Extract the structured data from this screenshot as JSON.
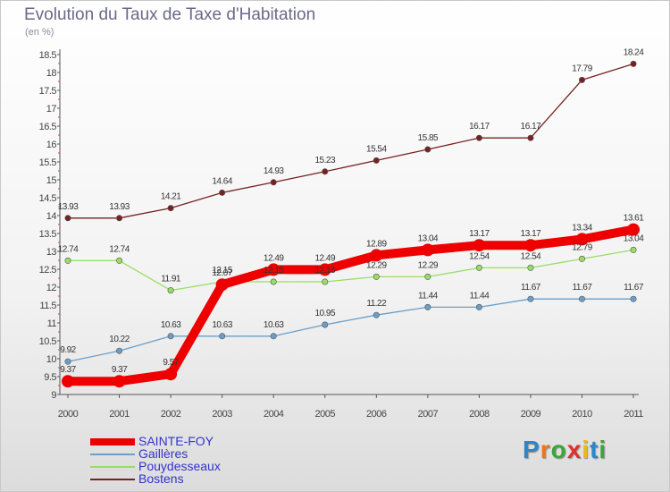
{
  "header": {
    "title": "Evolution du Taux de Taxe d'Habitation",
    "subtitle": "(en %)"
  },
  "logo": {
    "text": "Proxiti",
    "letter_colors": [
      "#2e86c8",
      "#e87722",
      "#3aa53a",
      "#e03030",
      "#e8b820",
      "#2e86c8",
      "#3aa53a"
    ]
  },
  "chart_data": {
    "type": "line",
    "title": "Evolution du Taux de Taxe d'Habitation",
    "subtitle": "(en %)",
    "xlabel": "",
    "ylabel": "",
    "categories": [
      "2000",
      "2001",
      "2002",
      "2003",
      "2004",
      "2005",
      "2006",
      "2007",
      "2008",
      "2009",
      "2010",
      "2011"
    ],
    "ylim": [
      9,
      18.5
    ],
    "yticks": [
      "9",
      "9.5",
      "10",
      "10.5",
      "11",
      "11.5",
      "12",
      "12.5",
      "13",
      "13.5",
      "14",
      "14.5",
      "15",
      "15.5",
      "16",
      "16.5",
      "17",
      "17.5",
      "18",
      "18.5"
    ],
    "grid": false,
    "legend_position": "bottom-left",
    "series": [
      {
        "name": "SAINTE-FOY",
        "color": "#ee0000",
        "emphasis": true,
        "values": [
          9.37,
          9.37,
          9.57,
          12.07,
          12.49,
          12.49,
          12.89,
          13.04,
          13.17,
          13.17,
          13.34,
          13.61
        ],
        "labels": [
          "9.37",
          "9.37",
          "9.57",
          "12.07",
          "12.49",
          "12.49",
          "12.89",
          "13.04",
          "13.17",
          "13.17",
          "13.34",
          "13.61"
        ]
      },
      {
        "name": "Gaillères",
        "color": "#6a9ec8",
        "emphasis": false,
        "values": [
          9.92,
          10.22,
          10.63,
          10.63,
          10.63,
          10.95,
          11.22,
          11.44,
          11.44,
          11.67,
          11.67,
          11.67
        ],
        "labels": [
          "9.92",
          "10.22",
          "10.63",
          "10.63",
          "10.63",
          "10.95",
          "11.22",
          "11.44",
          "11.44",
          "11.67",
          "11.67",
          "11.67"
        ]
      },
      {
        "name": "Pouydesseaux",
        "color": "#99dd66",
        "emphasis": false,
        "values": [
          12.74,
          12.74,
          11.91,
          12.15,
          12.15,
          12.15,
          12.29,
          12.29,
          12.54,
          12.54,
          12.79,
          13.04
        ],
        "labels": [
          "12.74",
          "12.74",
          "11.91",
          "12.15",
          "12.15",
          "12.15",
          "12.29",
          "12.29",
          "12.54",
          "12.54",
          "12.79",
          "13.04"
        ]
      },
      {
        "name": "Bostens",
        "color": "#772222",
        "emphasis": false,
        "values": [
          13.93,
          13.93,
          14.21,
          14.64,
          14.93,
          15.23,
          15.54,
          15.85,
          16.17,
          16.17,
          17.79,
          18.24
        ],
        "labels": [
          "13.93",
          "13.93",
          "14.21",
          "14.64",
          "14.93",
          "15.23",
          "15.54",
          "15.85",
          "16.17",
          "16.17",
          "17.79",
          "18.24"
        ]
      }
    ]
  }
}
